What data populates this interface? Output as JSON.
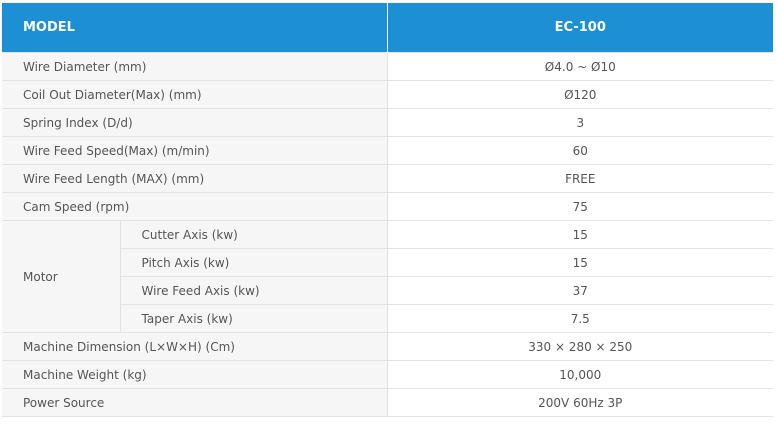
{
  "header": {
    "label": "MODEL",
    "model": "EC-100"
  },
  "rows": {
    "wire_diameter": {
      "label": "Wire Diameter (mm)",
      "value": "Ø4.0 ~ Ø10"
    },
    "coil_out_diameter": {
      "label": "Coil Out Diameter(Max) (mm)",
      "value": "Ø120"
    },
    "spring_index": {
      "label": "Spring Index (D/d)",
      "value": "3"
    },
    "wire_feed_speed": {
      "label": "Wire Feed Speed(Max) (m/min)",
      "value": "60"
    },
    "wire_feed_length": {
      "label": "Wire Feed Length (MAX) (mm)",
      "value": "FREE"
    },
    "cam_speed": {
      "label": "Cam Speed (rpm)",
      "value": "75"
    },
    "motor": {
      "label": "Motor",
      "items": [
        {
          "label": "Cutter Axis (kw)",
          "value": "15"
        },
        {
          "label": "Pitch Axis (kw)",
          "value": "15"
        },
        {
          "label": "Wire Feed Axis (kw)",
          "value": "37"
        },
        {
          "label": "Taper Axis (kw)",
          "value": "7.5"
        }
      ]
    },
    "machine_dimension": {
      "label": "Machine Dimension (L×W×H) (Cm)",
      "value": "330 × 280 × 250"
    },
    "machine_weight": {
      "label": "Machine Weight (kg)",
      "value": "10,000"
    },
    "power_source": {
      "label": "Power Source",
      "value": "200V 60Hz 3P"
    }
  },
  "colors": {
    "header_bg": "#1c8fd5",
    "label_bg": "#f6f6f6",
    "border": "#e2e2e2",
    "text": "#555555"
  }
}
